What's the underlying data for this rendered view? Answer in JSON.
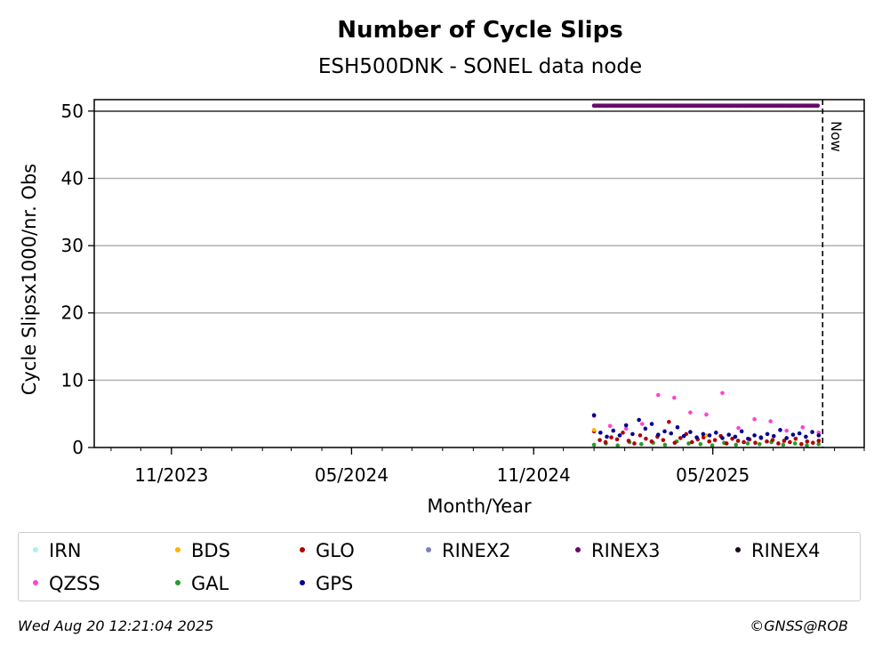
{
  "chart_data": {
    "type": "scatter",
    "title": "Number of Cycle Slips",
    "subtitle": "ESH500DNK - SONEL data node",
    "xlabel": "Month/Year",
    "ylabel": "Cycle Slipsx1000/nr. Obs",
    "ylim": [
      0,
      51.7
    ],
    "xlim": [
      "2023-08-15",
      "2025-10-01"
    ],
    "x_ticks": [
      "11/2023",
      "05/2024",
      "11/2024",
      "05/2025"
    ],
    "y_ticks": [
      0,
      10,
      20,
      30,
      40,
      50
    ],
    "grid": "y",
    "now_label": "Now",
    "now_date": "2025-08-20",
    "data_start": "2025-01-01",
    "data_end": "2025-08-16",
    "legend_placement": "bottom",
    "series": [
      {
        "name": "IRN",
        "color": "#aaf0f0",
        "values": []
      },
      {
        "name": "BDS",
        "color": "#ffb400",
        "values": [
          2.6,
          1.8,
          2.2
        ]
      },
      {
        "name": "GLO",
        "color": "#b00000",
        "values": [
          2.4,
          1.1,
          0.8,
          1.5,
          1.2,
          2.2,
          1.0,
          0.6,
          1.8,
          1.3,
          0.9,
          1.6,
          1.1,
          3.8,
          0.7,
          1.4,
          2.0,
          0.8,
          1.2,
          1.5,
          0.9,
          1.1,
          1.7,
          0.6,
          1.3,
          1.0,
          0.8,
          1.2,
          0.7,
          1.4,
          0.9,
          1.1,
          0.6,
          1.0,
          0.8,
          1.3,
          0.5,
          0.9,
          0.7,
          1.0
        ]
      },
      {
        "name": "RINEX2",
        "color": "#8080c0",
        "values": []
      },
      {
        "name": "RINEX3",
        "color": "#6a0a6a",
        "values": [
          50.8
        ]
      },
      {
        "name": "RINEX4",
        "color": "#1a0a1a",
        "values": []
      },
      {
        "name": "QZSS",
        "color": "#ff44cc",
        "values": [
          4.7,
          3.2,
          2.8,
          3.5,
          7.8,
          7.4,
          5.2,
          4.9,
          8.1,
          2.9,
          4.2,
          3.9,
          2.5,
          3.0,
          2.2
        ]
      },
      {
        "name": "GAL",
        "color": "#2a9a2a",
        "values": [
          0.4,
          0.6,
          0.3,
          0.8,
          0.5,
          0.7,
          0.4,
          0.9,
          0.6,
          0.5,
          0.3,
          0.7,
          0.4,
          0.6,
          0.5,
          0.8,
          0.4,
          0.6,
          0.3,
          0.5
        ]
      },
      {
        "name": "GPS",
        "color": "#000090",
        "values": [
          4.8,
          2.2,
          1.6,
          2.5,
          1.8,
          3.3,
          2.0,
          4.1,
          2.8,
          3.5,
          1.9,
          2.4,
          2.1,
          3.0,
          1.7,
          2.3,
          1.5,
          2.0,
          1.8,
          2.2,
          1.4,
          1.9,
          1.6,
          2.4,
          1.3,
          1.8,
          1.5,
          2.0,
          1.7,
          2.6,
          1.4,
          1.9,
          2.1,
          1.6,
          2.3,
          1.8
        ]
      }
    ]
  },
  "footer": {
    "timestamp": "Wed Aug 20 12:21:04 2025",
    "credit": "©GNSS@ROB"
  }
}
